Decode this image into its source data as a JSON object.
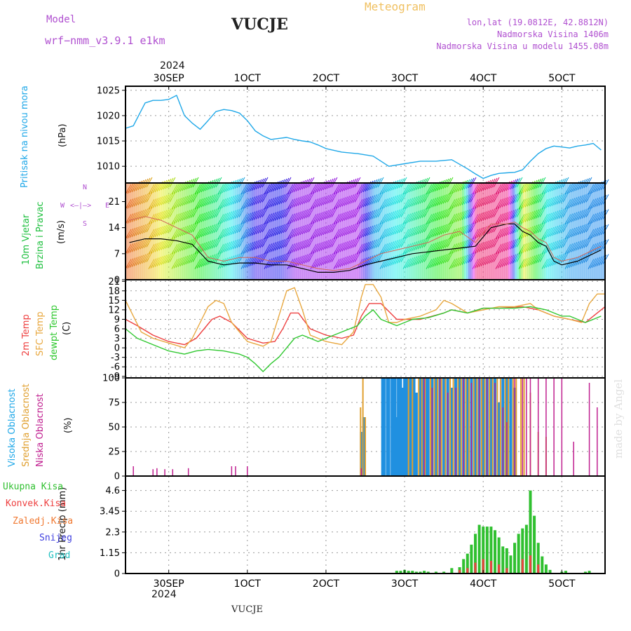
{
  "header": {
    "model_label": "Model",
    "model_name": "wrf−nmm_v3.9.1  e1km",
    "title": "VUCJE",
    "subtitle": "Meteogram",
    "lonlat": "lon,lat (19.0812E, 42.8812N)",
    "altitude": "Nadmorska Visina 1406m",
    "model_altitude": "Nadmorska Visina u modelu 1455.08m"
  },
  "footer": {
    "station": "VUCJE",
    "watermark": "made by Angel"
  },
  "x_axis": {
    "year": "2024",
    "ticks": [
      {
        "day": 0,
        "label": "30SEP"
      },
      {
        "day": 1,
        "label": "1OCT"
      },
      {
        "day": 2,
        "label": "2OCT"
      },
      {
        "day": 3,
        "label": "3OCT"
      },
      {
        "day": 4,
        "label": "4OCT"
      },
      {
        "day": 5,
        "label": "5OCT"
      }
    ],
    "range_days": [
      -0.55,
      5.55
    ]
  },
  "chart_data": [
    {
      "type": "line",
      "panel": "pressure",
      "ylabel": "Pritisak na nivou mora",
      "unit": "(hPa)",
      "yticks": [
        1010,
        1015,
        1020,
        1025
      ],
      "ylim": [
        1006.7,
        1025.8
      ],
      "color": "#20a8e8",
      "x": [
        -0.55,
        -0.45,
        -0.4,
        -0.35,
        -0.3,
        -0.2,
        -0.1,
        0.0,
        0.1,
        0.15,
        0.2,
        0.3,
        0.4,
        0.5,
        0.6,
        0.7,
        0.8,
        0.9,
        1.0,
        1.1,
        1.2,
        1.3,
        1.4,
        1.5,
        1.6,
        1.7,
        1.8,
        1.9,
        2.0,
        2.2,
        2.4,
        2.6,
        2.8,
        3.0,
        3.2,
        3.4,
        3.6,
        3.8,
        3.9,
        4.0,
        4.1,
        4.2,
        4.3,
        4.4,
        4.5,
        4.6,
        4.7,
        4.8,
        4.9,
        5.0,
        5.1,
        5.2,
        5.3,
        5.4,
        5.5
      ],
      "y": [
        1017.5,
        1018,
        1019.5,
        1021,
        1022.5,
        1023,
        1023,
        1023.2,
        1024,
        1022,
        1020,
        1018.5,
        1017.3,
        1019,
        1020.8,
        1021.2,
        1021,
        1020.5,
        1019,
        1017,
        1016,
        1015.3,
        1015.5,
        1015.7,
        1015.3,
        1015,
        1014.8,
        1014.2,
        1013.5,
        1012.8,
        1012.5,
        1012,
        1010,
        1010.5,
        1011,
        1011,
        1011.3,
        1009.5,
        1008.5,
        1007.6,
        1008.2,
        1008.6,
        1008.7,
        1008.8,
        1009.3,
        1011,
        1012.5,
        1013.5,
        1014,
        1013.8,
        1013.6,
        1014,
        1014.2,
        1014.5,
        1013.2
      ]
    },
    {
      "type": "line",
      "panel": "wind",
      "ylabel": "10m Vjetar Brzina i Pravac",
      "unit": "(m/s)",
      "compass": {
        "n": "N",
        "s": "S",
        "w": "W",
        "e": "E"
      },
      "yticks": [
        0,
        7,
        14,
        21
      ],
      "ylim": [
        0,
        26
      ],
      "series": [
        {
          "color": "#000000",
          "x": [
            -0.5,
            -0.3,
            -0.1,
            0.1,
            0.2,
            0.3,
            0.5,
            0.7,
            0.9,
            1.1,
            1.3,
            1.5,
            1.7,
            1.9,
            2.1,
            2.3,
            2.5,
            2.7,
            2.9,
            3.1,
            3.3,
            3.5,
            3.7,
            3.9,
            4.1,
            4.3,
            4.4,
            4.5,
            4.6,
            4.7,
            4.8,
            4.9,
            5.0,
            5.2,
            5.4,
            5.5
          ],
          "y": [
            10,
            11,
            11,
            10.5,
            10,
            9.5,
            5,
            4,
            4.5,
            4.5,
            4,
            4,
            3,
            2,
            2,
            2.5,
            4,
            5,
            6,
            7,
            7.5,
            8,
            8.5,
            9,
            14,
            15,
            15,
            13,
            12,
            10,
            9,
            5,
            4,
            5,
            7,
            8
          ]
        },
        {
          "color": "#d26456",
          "x": [
            -0.5,
            -0.3,
            -0.1,
            0.1,
            0.2,
            0.3,
            0.5,
            0.7,
            0.9,
            1.1,
            1.3,
            1.5,
            1.7,
            1.9,
            2.1,
            2.3,
            2.5,
            2.7,
            2.9,
            3.1,
            3.3,
            3.5,
            3.7,
            3.9,
            4.1,
            4.3,
            4.4,
            4.5,
            4.6,
            4.7,
            4.8,
            4.9,
            5.0,
            5.2,
            5.4,
            5.5
          ],
          "y": [
            16,
            17,
            16,
            14,
            13,
            12,
            6,
            5,
            6,
            6,
            5,
            5,
            4,
            3,
            2.5,
            3,
            5,
            7,
            8,
            9,
            10,
            12,
            13,
            10,
            15,
            15,
            15.5,
            14,
            13,
            11,
            10,
            6,
            5,
            6,
            8,
            9
          ]
        }
      ]
    },
    {
      "type": "line",
      "panel": "temperature",
      "ylabel": [
        "2m Temp",
        "SFC Temp",
        "dewpt Temp"
      ],
      "unit": "(C)",
      "yticks": [
        -9,
        -6,
        -3,
        0,
        3,
        6,
        9,
        12,
        15,
        18,
        21
      ],
      "ylim": [
        -9.5,
        21.5
      ],
      "series": [
        {
          "name": "2m Temp",
          "color": "#ee4040",
          "x": [
            -0.55,
            -0.4,
            -0.2,
            0.0,
            0.2,
            0.35,
            0.45,
            0.55,
            0.65,
            0.8,
            1.0,
            1.2,
            1.35,
            1.45,
            1.55,
            1.65,
            1.8,
            2.0,
            2.2,
            2.35,
            2.45,
            2.55,
            2.7,
            2.9,
            3.2,
            3.5,
            3.6,
            3.8,
            4.0,
            4.2,
            4.5,
            4.7,
            4.9,
            5.1,
            5.3,
            5.4,
            5.55
          ],
          "y": [
            9,
            7,
            4,
            2,
            1,
            3,
            6,
            9,
            10,
            8,
            3,
            1.5,
            2,
            6,
            11,
            11,
            6,
            4,
            3,
            4,
            10,
            14,
            14,
            9,
            9,
            11,
            12,
            11,
            12.5,
            12.5,
            13,
            12,
            10,
            9,
            8,
            10,
            13
          ]
        },
        {
          "name": "SFC Temp",
          "color": "#e8a840",
          "x": [
            -0.55,
            -0.45,
            -0.35,
            -0.2,
            0.0,
            0.2,
            0.3,
            0.4,
            0.5,
            0.6,
            0.7,
            0.8,
            1.0,
            1.2,
            1.3,
            1.4,
            1.5,
            1.6,
            1.7,
            1.8,
            2.0,
            2.2,
            2.35,
            2.45,
            2.5,
            2.6,
            2.7,
            2.8,
            2.9,
            3.0,
            3.2,
            3.4,
            3.5,
            3.6,
            3.8,
            4.0,
            4.2,
            4.4,
            4.6,
            4.7,
            4.9,
            5.1,
            5.25,
            5.35,
            5.45,
            5.55
          ],
          "y": [
            15,
            10,
            5,
            3,
            1.5,
            0,
            3,
            8,
            13,
            15,
            14,
            8,
            2,
            0.5,
            2,
            10,
            18,
            19,
            12,
            4,
            2,
            1,
            5,
            16,
            20,
            20,
            16,
            8,
            8,
            9,
            10,
            12,
            15,
            14,
            11,
            12,
            13,
            13,
            14,
            12,
            10,
            9,
            8,
            14,
            17,
            17
          ]
        },
        {
          "name": "dewpt Temp",
          "color": "#30c830",
          "x": [
            -0.55,
            -0.4,
            -0.2,
            0.0,
            0.2,
            0.35,
            0.5,
            0.7,
            0.9,
            1.0,
            1.1,
            1.2,
            1.3,
            1.4,
            1.5,
            1.6,
            1.7,
            1.8,
            1.9,
            2.0,
            2.2,
            2.4,
            2.5,
            2.6,
            2.7,
            2.9,
            3.1,
            3.3,
            3.5,
            3.6,
            3.8,
            4.0,
            4.2,
            4.4,
            4.6,
            4.8,
            5.0,
            5.1,
            5.2,
            5.3,
            5.4,
            5.5
          ],
          "y": [
            6,
            3,
            1,
            -1,
            -2,
            -1,
            -0.5,
            -1,
            -2,
            -3,
            -5,
            -7.5,
            -5,
            -3,
            0,
            3,
            4,
            3,
            2,
            3,
            5,
            7,
            10,
            12,
            9,
            7,
            9,
            9.5,
            11,
            12,
            11,
            12.5,
            12.5,
            12.5,
            13,
            12,
            10,
            10,
            9,
            8,
            9,
            10
          ]
        }
      ]
    },
    {
      "type": "bar",
      "panel": "cloud",
      "ylabel": [
        "Visoka Oblacnost",
        "Srednja Oblacnost",
        "Niska Oblacnost"
      ],
      "unit": "(%)",
      "yticks": [
        0,
        25,
        50,
        75,
        100
      ],
      "ylim": [
        0,
        100
      ],
      "series": [
        {
          "name": "Visoka Oblacnost",
          "color": "#2090e0",
          "x": [
            2.45,
            2.48,
            2.72,
            2.74,
            2.78,
            2.8,
            2.84,
            2.86,
            2.88,
            2.9,
            2.92,
            2.95,
            2.97,
            3.0,
            3.02,
            3.05,
            3.08,
            3.12,
            3.15,
            3.2,
            3.24,
            3.28,
            3.3,
            3.35,
            3.4,
            3.45,
            3.5,
            3.55,
            3.6,
            3.65,
            3.7,
            3.75,
            3.8,
            3.85,
            3.9,
            3.95,
            4.0,
            4.05,
            4.1,
            4.15,
            4.2,
            4.25,
            4.3,
            4.35,
            4.4
          ],
          "y": [
            45,
            60,
            100,
            100,
            100,
            100,
            100,
            100,
            100,
            60,
            100,
            100,
            90,
            100,
            100,
            100,
            100,
            100,
            85,
            100,
            100,
            100,
            100,
            100,
            100,
            100,
            100,
            100,
            90,
            100,
            100,
            100,
            100,
            100,
            100,
            100,
            100,
            100,
            100,
            100,
            75,
            100,
            100,
            100,
            90
          ]
        },
        {
          "name": "Srednja Oblacnost",
          "color": "#e0a030",
          "x": [
            2.44,
            2.47,
            2.5,
            3.05,
            3.1,
            3.18,
            3.22,
            3.26,
            3.33,
            3.38,
            3.42,
            3.47,
            3.52,
            3.58,
            3.62,
            3.68,
            3.72,
            3.78,
            3.82,
            3.88,
            3.92,
            3.98,
            4.02,
            4.08,
            4.12,
            4.18,
            4.22,
            4.28,
            4.32,
            4.38,
            4.42,
            4.48,
            4.52,
            4.6,
            4.7,
            4.8
          ],
          "y": [
            70,
            100,
            60,
            100,
            100,
            100,
            100,
            100,
            100,
            100,
            100,
            100,
            100,
            100,
            100,
            100,
            100,
            100,
            100,
            100,
            100,
            100,
            100,
            100,
            100,
            100,
            100,
            100,
            100,
            100,
            100,
            100,
            100,
            85,
            45,
            40
          ]
        },
        {
          "name": "Niska Oblacnost",
          "color": "#c02090",
          "x": [
            -0.45,
            -0.2,
            -0.15,
            -0.05,
            0.05,
            0.25,
            0.8,
            0.85,
            1.0,
            2.45,
            3.25,
            3.35,
            3.45,
            3.55,
            3.65,
            3.75,
            3.85,
            3.95,
            4.05,
            4.15,
            4.25,
            4.3,
            4.4,
            4.5,
            4.55,
            4.6,
            4.7,
            4.8,
            4.9,
            5.0,
            5.15,
            5.35,
            5.45
          ],
          "y": [
            10,
            7,
            8,
            7,
            7,
            8,
            10,
            10,
            10,
            8,
            100,
            90,
            100,
            85,
            90,
            100,
            95,
            100,
            100,
            95,
            70,
            55,
            100,
            100,
            100,
            100,
            100,
            100,
            100,
            100,
            35,
            95,
            70
          ]
        }
      ]
    },
    {
      "type": "bar",
      "panel": "precip",
      "ylabel": "1hr Precip (mm)",
      "yticks": [
        0,
        1.15,
        2.3,
        3.45,
        4.6
      ],
      "ylim": [
        0,
        5.4
      ],
      "legend": [
        {
          "name": "Ukupna Kisa",
          "color": "#30c030"
        },
        {
          "name": "Konvek.Kisa",
          "color": "#ee4040"
        },
        {
          "name": "Zaledj.Kisa",
          "color": "#f07830"
        },
        {
          "name": "Snijeg",
          "color": "#4040e0"
        },
        {
          "name": "Grad",
          "color": "#20c0c0"
        }
      ],
      "series": [
        {
          "name": "Ukupna Kisa",
          "color": "#30c030",
          "x": [
            2.9,
            2.95,
            3.0,
            3.05,
            3.1,
            3.15,
            3.2,
            3.25,
            3.3,
            3.4,
            3.5,
            3.6,
            3.7,
            3.75,
            3.8,
            3.85,
            3.9,
            3.95,
            4.0,
            4.05,
            4.1,
            4.15,
            4.2,
            4.25,
            4.3,
            4.35,
            4.4,
            4.45,
            4.5,
            4.55,
            4.6,
            4.65,
            4.7,
            4.75,
            4.8,
            4.85,
            5.0,
            5.05,
            5.3,
            5.35
          ],
          "y": [
            0.15,
            0.15,
            0.2,
            0.15,
            0.15,
            0.1,
            0.1,
            0.15,
            0.1,
            0.1,
            0.1,
            0.3,
            0.35,
            0.8,
            1.1,
            1.6,
            2.2,
            2.7,
            2.6,
            2.6,
            2.6,
            2.4,
            2.0,
            1.5,
            1.4,
            1.0,
            1.7,
            2.2,
            2.5,
            2.7,
            4.6,
            3.2,
            1.7,
            0.95,
            0.5,
            0.2,
            0.1,
            0.15,
            0.1,
            0.15
          ]
        },
        {
          "name": "Konvek.Kisa",
          "color": "#ee4040",
          "x": [
            3.7,
            3.8,
            3.9,
            4.0,
            4.1,
            4.2,
            4.3,
            4.5,
            4.6,
            4.7
          ],
          "y": [
            0.2,
            0.3,
            0.6,
            0.8,
            0.7,
            0.5,
            0.3,
            0.8,
            1.0,
            0.5
          ]
        }
      ]
    }
  ]
}
